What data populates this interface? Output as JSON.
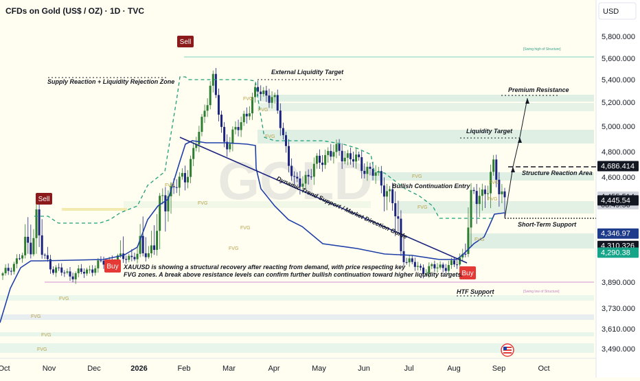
{
  "header": {
    "symbol_title": "CFDs on Gold (US$ / OZ) · 1D · TVC",
    "currency": "USD",
    "watermark": "GOLD"
  },
  "chart_data": {
    "type": "candlestick",
    "title": "CFDs on Gold (US$ / OZ) · 1D · TVC",
    "ylim": [
      3400,
      6000
    ],
    "y_ticks": [
      5800,
      5600,
      5400,
      5200,
      5000,
      4800,
      4600,
      3890,
      3730,
      3610,
      3490
    ],
    "y_tick_labels": [
      "5,800.000",
      "5,600.000",
      "5,400.000",
      "5,200.000",
      "5,000.000",
      "4,800.000",
      "4,600.000",
      "3,890.000",
      "3,730.000",
      "3,610.000",
      "3,490.000"
    ],
    "x_labels": [
      "Oct",
      "Nov",
      "Dec",
      "2026",
      "Feb",
      "Mar",
      "Apr",
      "May",
      "Jun",
      "Jul",
      "Aug",
      "Sep",
      "Oct"
    ],
    "grid": false,
    "series": [
      {
        "kind": "ohlc_close_path",
        "points": [
          [
            0,
            3980
          ],
          [
            3,
            4220
          ],
          [
            6,
            4390
          ],
          [
            9,
            4080
          ],
          [
            12,
            3990
          ],
          [
            15,
            4030
          ],
          [
            18,
            4150
          ],
          [
            21,
            4210
          ],
          [
            24,
            4250
          ],
          [
            27,
            4300
          ],
          [
            30,
            4500
          ],
          [
            33,
            4590
          ],
          [
            36,
            5000
          ],
          [
            38,
            5450
          ],
          [
            40,
            4850
          ],
          [
            43,
            5000
          ],
          [
            46,
            5300
          ],
          [
            49,
            5250
          ],
          [
            51,
            4900
          ],
          [
            53,
            4520
          ],
          [
            56,
            4650
          ],
          [
            59,
            4800
          ],
          [
            62,
            4780
          ],
          [
            65,
            4700
          ],
          [
            68,
            4600
          ],
          [
            71,
            4420
          ],
          [
            73,
            4200
          ],
          [
            76,
            4050
          ],
          [
            79,
            4100
          ],
          [
            82,
            4120
          ],
          [
            85,
            4450
          ],
          [
            88,
            4520
          ],
          [
            89,
            4680
          ],
          [
            90,
            4520
          ],
          [
            91,
            4455
          ]
        ]
      }
    ],
    "price_tags": [
      {
        "value": 4686.414,
        "label": "4,686.414",
        "color": "#131722"
      },
      {
        "value": 4455.514,
        "label": "4,455.514",
        "sublabel": "08:49:50",
        "color": "#d1d4dc"
      },
      {
        "value": 4445.54,
        "label": "4,445.54",
        "color": "#131722"
      },
      {
        "value": 4346.97,
        "label": "4,346.97",
        "color": "#1e3a8a"
      },
      {
        "value": 4310.326,
        "label": "4,310.326",
        "color": "#131722"
      },
      {
        "value": 4290.38,
        "label": "4,290.38",
        "color": "#17a589"
      }
    ],
    "signals": [
      {
        "label": "Sell",
        "type": "sell"
      },
      {
        "label": "Sell",
        "type": "sell"
      },
      {
        "label": "Buy",
        "type": "buy"
      },
      {
        "label": "Buy",
        "type": "buy"
      }
    ],
    "annotations": {
      "supply_zone": "Supply Reaction + Liquidity Rejection Zone",
      "external_liquidity": "External Liquidity Target",
      "premium_resistance": "Premium Resistance",
      "liquidity_target": "Liquidity Target",
      "structure_reaction": "Structure Reaction Area",
      "bullish_continuation": "Bullish Continuation Entry",
      "short_term_support": "Short-Term Support",
      "htf_support": "HTF Support",
      "trend_support": "Dynamic Trend Support / Market Direction Guide",
      "swing_high": "[Swing high of Structure]",
      "swing_low": "[Swing low of Structure]",
      "fvg": "FVG",
      "description_line1": "XAUUSD is showing a structural recovery after reacting from demand, with price respecting key",
      "description_line2": "FVG zones. A break above resistance levels can confirm further bullish continuation toward higher liquidity targets."
    }
  }
}
